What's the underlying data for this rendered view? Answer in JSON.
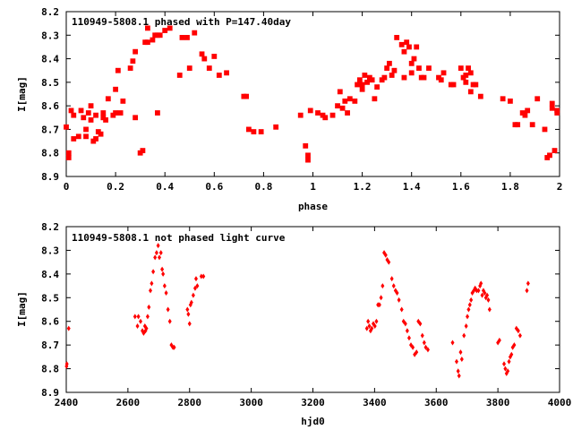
{
  "chart_data": [
    {
      "type": "scatter",
      "title": "110949-5808.1 phased with P=147.40day",
      "xlabel": "phase",
      "ylabel": "I[mag]",
      "xlim": [
        0,
        2
      ],
      "ylim": [
        8.9,
        8.2
      ],
      "y_inverted": true,
      "x_ticks": [
        "0",
        "0.2",
        "0.4",
        "0.6",
        "0.8",
        "1",
        "1.2",
        "1.4",
        "1.6",
        "1.8",
        "2"
      ],
      "x_tick_values": [
        0,
        0.2,
        0.4,
        0.6,
        0.8,
        1.0,
        1.2,
        1.4,
        1.6,
        1.8,
        2.0
      ],
      "y_ticks": [
        "8.2",
        "8.3",
        "8.4",
        "8.5",
        "8.6",
        "8.7",
        "8.8",
        "8.9"
      ],
      "y_tick_values": [
        8.2,
        8.3,
        8.4,
        8.5,
        8.6,
        8.7,
        8.8,
        8.9
      ],
      "grid": false,
      "marker_color": "#ff0000",
      "series": [
        {
          "points": [
            [
              0.0,
              8.69
            ],
            [
              0.01,
              8.82
            ],
            [
              0.01,
              8.8
            ],
            [
              0.02,
              8.62
            ],
            [
              0.03,
              8.64
            ],
            [
              0.03,
              8.74
            ],
            [
              0.05,
              8.73
            ],
            [
              0.06,
              8.62
            ],
            [
              0.07,
              8.65
            ],
            [
              0.08,
              8.73
            ],
            [
              0.08,
              8.7
            ],
            [
              0.09,
              8.63
            ],
            [
              0.1,
              8.6
            ],
            [
              0.1,
              8.66
            ],
            [
              0.11,
              8.75
            ],
            [
              0.12,
              8.74
            ],
            [
              0.12,
              8.64
            ],
            [
              0.13,
              8.71
            ],
            [
              0.14,
              8.72
            ],
            [
              0.15,
              8.63
            ],
            [
              0.15,
              8.65
            ],
            [
              0.16,
              8.66
            ],
            [
              0.17,
              8.57
            ],
            [
              0.19,
              8.64
            ],
            [
              0.2,
              8.63
            ],
            [
              0.2,
              8.53
            ],
            [
              0.21,
              8.45
            ],
            [
              0.22,
              8.63
            ],
            [
              0.23,
              8.58
            ],
            [
              0.26,
              8.44
            ],
            [
              0.27,
              8.41
            ],
            [
              0.28,
              8.37
            ],
            [
              0.28,
              8.65
            ],
            [
              0.3,
              8.8
            ],
            [
              0.31,
              8.79
            ],
            [
              0.32,
              8.33
            ],
            [
              0.33,
              8.33
            ],
            [
              0.33,
              8.27
            ],
            [
              0.35,
              8.32
            ],
            [
              0.36,
              8.3
            ],
            [
              0.37,
              8.3
            ],
            [
              0.37,
              8.63
            ],
            [
              0.38,
              8.3
            ],
            [
              0.4,
              8.28
            ],
            [
              0.42,
              8.27
            ],
            [
              0.46,
              8.47
            ],
            [
              0.47,
              8.31
            ],
            [
              0.49,
              8.31
            ],
            [
              0.5,
              8.44
            ],
            [
              0.52,
              8.29
            ],
            [
              0.55,
              8.38
            ],
            [
              0.56,
              8.4
            ],
            [
              0.58,
              8.44
            ],
            [
              0.6,
              8.39
            ],
            [
              0.62,
              8.47
            ],
            [
              0.65,
              8.46
            ],
            [
              0.72,
              8.56
            ],
            [
              0.73,
              8.56
            ],
            [
              0.74,
              8.7
            ],
            [
              0.76,
              8.71
            ],
            [
              0.79,
              8.71
            ],
            [
              0.85,
              8.69
            ],
            [
              0.95,
              8.64
            ],
            [
              0.97,
              8.77
            ],
            [
              0.98,
              8.83
            ],
            [
              0.98,
              8.81
            ],
            [
              0.99,
              8.62
            ],
            [
              1.02,
              8.63
            ],
            [
              1.04,
              8.64
            ],
            [
              1.05,
              8.65
            ],
            [
              1.08,
              8.64
            ],
            [
              1.1,
              8.6
            ],
            [
              1.11,
              8.54
            ],
            [
              1.12,
              8.61
            ],
            [
              1.13,
              8.58
            ],
            [
              1.14,
              8.63
            ],
            [
              1.15,
              8.57
            ],
            [
              1.17,
              8.58
            ],
            [
              1.18,
              8.51
            ],
            [
              1.19,
              8.49
            ],
            [
              1.2,
              8.53
            ],
            [
              1.2,
              8.51
            ],
            [
              1.21,
              8.47
            ],
            [
              1.22,
              8.5
            ],
            [
              1.23,
              8.48
            ],
            [
              1.24,
              8.49
            ],
            [
              1.25,
              8.57
            ],
            [
              1.26,
              8.52
            ],
            [
              1.28,
              8.49
            ],
            [
              1.29,
              8.48
            ],
            [
              1.3,
              8.44
            ],
            [
              1.31,
              8.42
            ],
            [
              1.32,
              8.47
            ],
            [
              1.33,
              8.45
            ],
            [
              1.34,
              8.31
            ],
            [
              1.36,
              8.34
            ],
            [
              1.37,
              8.37
            ],
            [
              1.37,
              8.48
            ],
            [
              1.38,
              8.33
            ],
            [
              1.39,
              8.35
            ],
            [
              1.4,
              8.46
            ],
            [
              1.4,
              8.42
            ],
            [
              1.41,
              8.4
            ],
            [
              1.42,
              8.35
            ],
            [
              1.43,
              8.44
            ],
            [
              1.44,
              8.48
            ],
            [
              1.45,
              8.48
            ],
            [
              1.47,
              8.44
            ],
            [
              1.51,
              8.48
            ],
            [
              1.52,
              8.49
            ],
            [
              1.53,
              8.46
            ],
            [
              1.56,
              8.51
            ],
            [
              1.57,
              8.51
            ],
            [
              1.6,
              8.44
            ],
            [
              1.61,
              8.48
            ],
            [
              1.62,
              8.47
            ],
            [
              1.62,
              8.5
            ],
            [
              1.63,
              8.44
            ],
            [
              1.64,
              8.46
            ],
            [
              1.64,
              8.54
            ],
            [
              1.65,
              8.51
            ],
            [
              1.66,
              8.51
            ],
            [
              1.68,
              8.56
            ],
            [
              1.77,
              8.57
            ],
            [
              1.8,
              8.58
            ],
            [
              1.82,
              8.68
            ],
            [
              1.83,
              8.68
            ],
            [
              1.85,
              8.63
            ],
            [
              1.86,
              8.64
            ],
            [
              1.87,
              8.62
            ],
            [
              1.89,
              8.68
            ],
            [
              1.91,
              8.57
            ],
            [
              1.94,
              8.7
            ],
            [
              1.95,
              8.82
            ],
            [
              1.96,
              8.81
            ],
            [
              1.97,
              8.59
            ],
            [
              1.97,
              8.61
            ],
            [
              1.98,
              8.79
            ],
            [
              1.99,
              8.63
            ],
            [
              1.99,
              8.62
            ]
          ]
        }
      ]
    },
    {
      "type": "scatter",
      "title": "110949-5808.1 not phased light curve",
      "xlabel": "hjd0",
      "ylabel": "I[mag]",
      "xlim": [
        2400,
        4000
      ],
      "ylim": [
        8.9,
        8.2
      ],
      "y_inverted": true,
      "x_ticks": [
        "2400",
        "2600",
        "2800",
        "3000",
        "3200",
        "3400",
        "3600",
        "3800",
        "4000"
      ],
      "x_tick_values": [
        2400,
        2600,
        2800,
        3000,
        3200,
        3400,
        3600,
        3800,
        4000
      ],
      "y_ticks": [
        "8.2",
        "8.3",
        "8.4",
        "8.5",
        "8.6",
        "8.7",
        "8.8",
        "8.9"
      ],
      "y_tick_values": [
        8.2,
        8.3,
        8.4,
        8.5,
        8.6,
        8.7,
        8.8,
        8.9
      ],
      "grid": false,
      "marker_color": "#ff0000",
      "series": [
        {
          "points": [
            [
              2401,
              8.79
            ],
            [
              2402,
              8.78
            ],
            [
              2408,
              8.63
            ],
            [
              2623,
              8.58
            ],
            [
              2631,
              8.62
            ],
            [
              2634,
              8.58
            ],
            [
              2641,
              8.6
            ],
            [
              2647,
              8.64
            ],
            [
              2651,
              8.65
            ],
            [
              2655,
              8.62
            ],
            [
              2657,
              8.64
            ],
            [
              2660,
              8.63
            ],
            [
              2664,
              8.58
            ],
            [
              2668,
              8.54
            ],
            [
              2673,
              8.47
            ],
            [
              2677,
              8.44
            ],
            [
              2682,
              8.39
            ],
            [
              2688,
              8.33
            ],
            [
              2693,
              8.31
            ],
            [
              2698,
              8.28
            ],
            [
              2702,
              8.33
            ],
            [
              2707,
              8.31
            ],
            [
              2711,
              8.38
            ],
            [
              2714,
              8.4
            ],
            [
              2719,
              8.45
            ],
            [
              2724,
              8.48
            ],
            [
              2730,
              8.55
            ],
            [
              2736,
              8.6
            ],
            [
              2741,
              8.7
            ],
            [
              2746,
              8.71
            ],
            [
              2750,
              8.71
            ],
            [
              2793,
              8.55
            ],
            [
              2796,
              8.57
            ],
            [
              2800,
              8.61
            ],
            [
              2803,
              8.53
            ],
            [
              2806,
              8.52
            ],
            [
              2812,
              8.49
            ],
            [
              2818,
              8.46
            ],
            [
              2821,
              8.42
            ],
            [
              2825,
              8.45
            ],
            [
              2838,
              8.41
            ],
            [
              2845,
              8.41
            ],
            [
              3375,
              8.63
            ],
            [
              3379,
              8.6
            ],
            [
              3383,
              8.62
            ],
            [
              3387,
              8.64
            ],
            [
              3391,
              8.63
            ],
            [
              3396,
              8.61
            ],
            [
              3401,
              8.62
            ],
            [
              3406,
              8.6
            ],
            [
              3411,
              8.53
            ],
            [
              3416,
              8.53
            ],
            [
              3421,
              8.5
            ],
            [
              3426,
              8.45
            ],
            [
              3431,
              8.31
            ],
            [
              3436,
              8.32
            ],
            [
              3441,
              8.34
            ],
            [
              3446,
              8.35
            ],
            [
              3456,
              8.42
            ],
            [
              3462,
              8.45
            ],
            [
              3468,
              8.47
            ],
            [
              3473,
              8.48
            ],
            [
              3479,
              8.51
            ],
            [
              3488,
              8.55
            ],
            [
              3494,
              8.6
            ],
            [
              3500,
              8.61
            ],
            [
              3506,
              8.64
            ],
            [
              3512,
              8.67
            ],
            [
              3518,
              8.7
            ],
            [
              3524,
              8.71
            ],
            [
              3530,
              8.74
            ],
            [
              3536,
              8.73
            ],
            [
              3542,
              8.6
            ],
            [
              3548,
              8.61
            ],
            [
              3555,
              8.66
            ],
            [
              3561,
              8.69
            ],
            [
              3566,
              8.71
            ],
            [
              3573,
              8.72
            ],
            [
              3653,
              8.69
            ],
            [
              3666,
              8.77
            ],
            [
              3671,
              8.81
            ],
            [
              3674,
              8.83
            ],
            [
              3679,
              8.73
            ],
            [
              3683,
              8.76
            ],
            [
              3690,
              8.66
            ],
            [
              3697,
              8.62
            ],
            [
              3701,
              8.58
            ],
            [
              3705,
              8.55
            ],
            [
              3709,
              8.53
            ],
            [
              3713,
              8.51
            ],
            [
              3717,
              8.48
            ],
            [
              3722,
              8.47
            ],
            [
              3726,
              8.46
            ],
            [
              3731,
              8.47
            ],
            [
              3737,
              8.47
            ],
            [
              3742,
              8.45
            ],
            [
              3745,
              8.44
            ],
            [
              3749,
              8.49
            ],
            [
              3753,
              8.47
            ],
            [
              3757,
              8.48
            ],
            [
              3761,
              8.5
            ],
            [
              3765,
              8.49
            ],
            [
              3769,
              8.51
            ],
            [
              3773,
              8.55
            ],
            [
              3800,
              8.69
            ],
            [
              3805,
              8.68
            ],
            [
              3820,
              8.78
            ],
            [
              3824,
              8.8
            ],
            [
              3828,
              8.82
            ],
            [
              3832,
              8.81
            ],
            [
              3836,
              8.77
            ],
            [
              3840,
              8.75
            ],
            [
              3844,
              8.74
            ],
            [
              3848,
              8.71
            ],
            [
              3853,
              8.7
            ],
            [
              3860,
              8.63
            ],
            [
              3866,
              8.64
            ],
            [
              3872,
              8.66
            ],
            [
              3894,
              8.47
            ],
            [
              3898,
              8.44
            ]
          ]
        }
      ]
    }
  ]
}
